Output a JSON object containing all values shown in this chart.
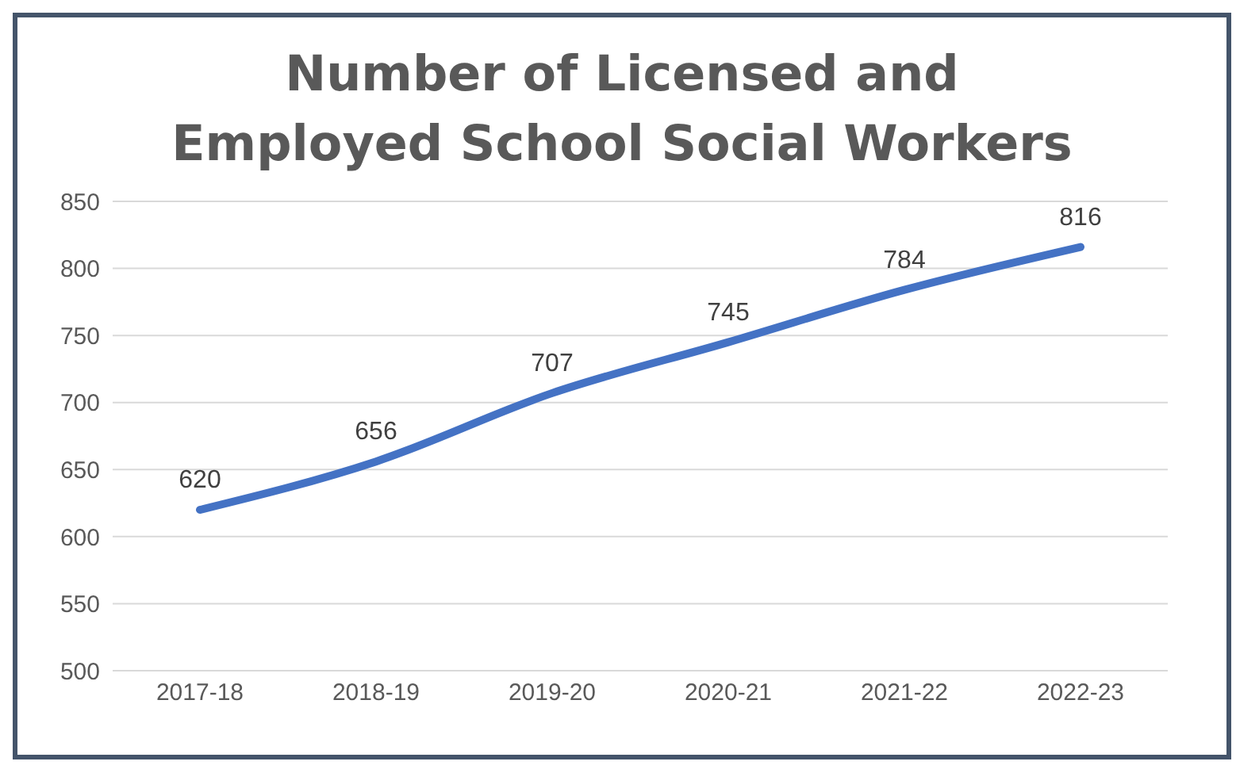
{
  "chart_data": {
    "type": "line",
    "title": "Number of Licensed and Employed School Social Workers",
    "categories": [
      "2017-18",
      "2018-19",
      "2019-20",
      "2020-21",
      "2021-22",
      "2022-23"
    ],
    "series": [
      {
        "color": "#4472c4",
        "values": [
          620,
          656,
          707,
          745,
          784,
          816
        ]
      }
    ],
    "ylim": [
      500,
      850
    ],
    "yticks": [
      500,
      550,
      600,
      650,
      700,
      750,
      800,
      850
    ],
    "grid": "y",
    "legend": false,
    "data_labels": true,
    "marker": "none",
    "line_style": "solid"
  }
}
